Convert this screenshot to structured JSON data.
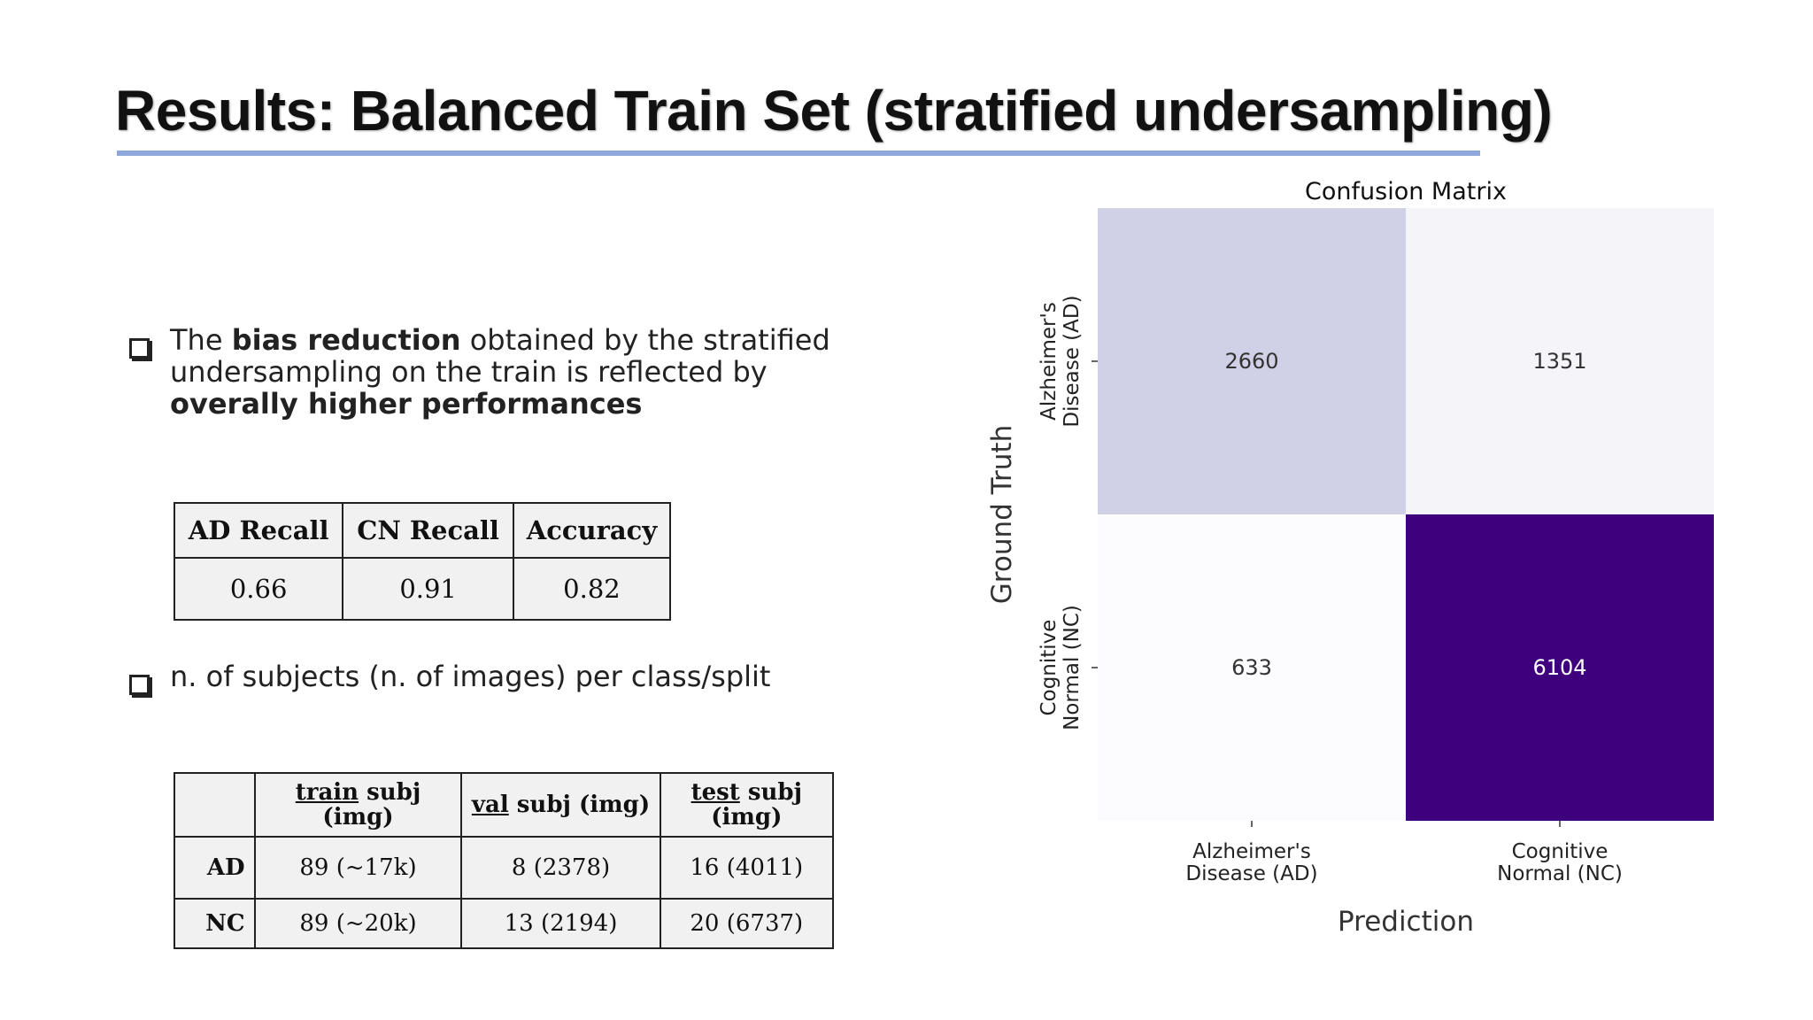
{
  "slide": {
    "title": "Results: Balanced Train Set (stratified undersampling)"
  },
  "bullets": [
    {
      "parts": [
        {
          "text": "The ",
          "bold": false
        },
        {
          "text": "bias reduction",
          "bold": true
        },
        {
          "text": " obtained by the stratified undersampling on the train is reflected by ",
          "bold": false
        },
        {
          "text": "overally higher performances",
          "bold": true
        }
      ]
    },
    {
      "parts": [
        {
          "text": "n. of subjects (n. of images) per class/split",
          "bold": false
        }
      ]
    }
  ],
  "metrics_table": {
    "headers": [
      "AD Recall",
      "CN Recall",
      "Accuracy"
    ],
    "values": [
      "0.66",
      "0.91",
      "0.82"
    ]
  },
  "split_table": {
    "headers": [
      {
        "u": "",
        "rest": ""
      },
      {
        "u": "train",
        "rest": " subj (img)"
      },
      {
        "u": "val",
        "rest": " subj (img)"
      },
      {
        "u": "test",
        "rest": " subj (img)"
      }
    ],
    "rows": [
      {
        "label": "AD",
        "cells": [
          "89 (~17k)",
          "8 (2378)",
          "16 (4011)"
        ]
      },
      {
        "label": "NC",
        "cells": [
          "89 (~20k)",
          "13 (2194)",
          "20 (6737)"
        ]
      }
    ]
  },
  "chart_data": {
    "type": "heatmap",
    "title": "Confusion Matrix",
    "xlabel": "Prediction",
    "ylabel": "Ground Truth",
    "x_categories": [
      "Alzheimer's Disease (AD)",
      "Cognitive Normal (NC)"
    ],
    "y_categories": [
      "Alzheimer's Disease (AD)",
      "Cognitive Normal (NC)"
    ],
    "x_tick_lines": [
      [
        "Alzheimer's",
        "Disease (AD)"
      ],
      [
        "Cognitive",
        "Normal (NC)"
      ]
    ],
    "y_tick_lines": [
      [
        "Alzheimer's",
        "Disease (AD)"
      ],
      [
        "Cognitive",
        "Normal (NC)"
      ]
    ],
    "values": [
      [
        2660,
        1351
      ],
      [
        633,
        6104
      ]
    ],
    "colormap": "Purples",
    "colorbar": false
  },
  "colors": {
    "title_rule": "#8ea7db",
    "cmap_low": "#fcfbfd",
    "cmap_high": "#3f007d"
  }
}
